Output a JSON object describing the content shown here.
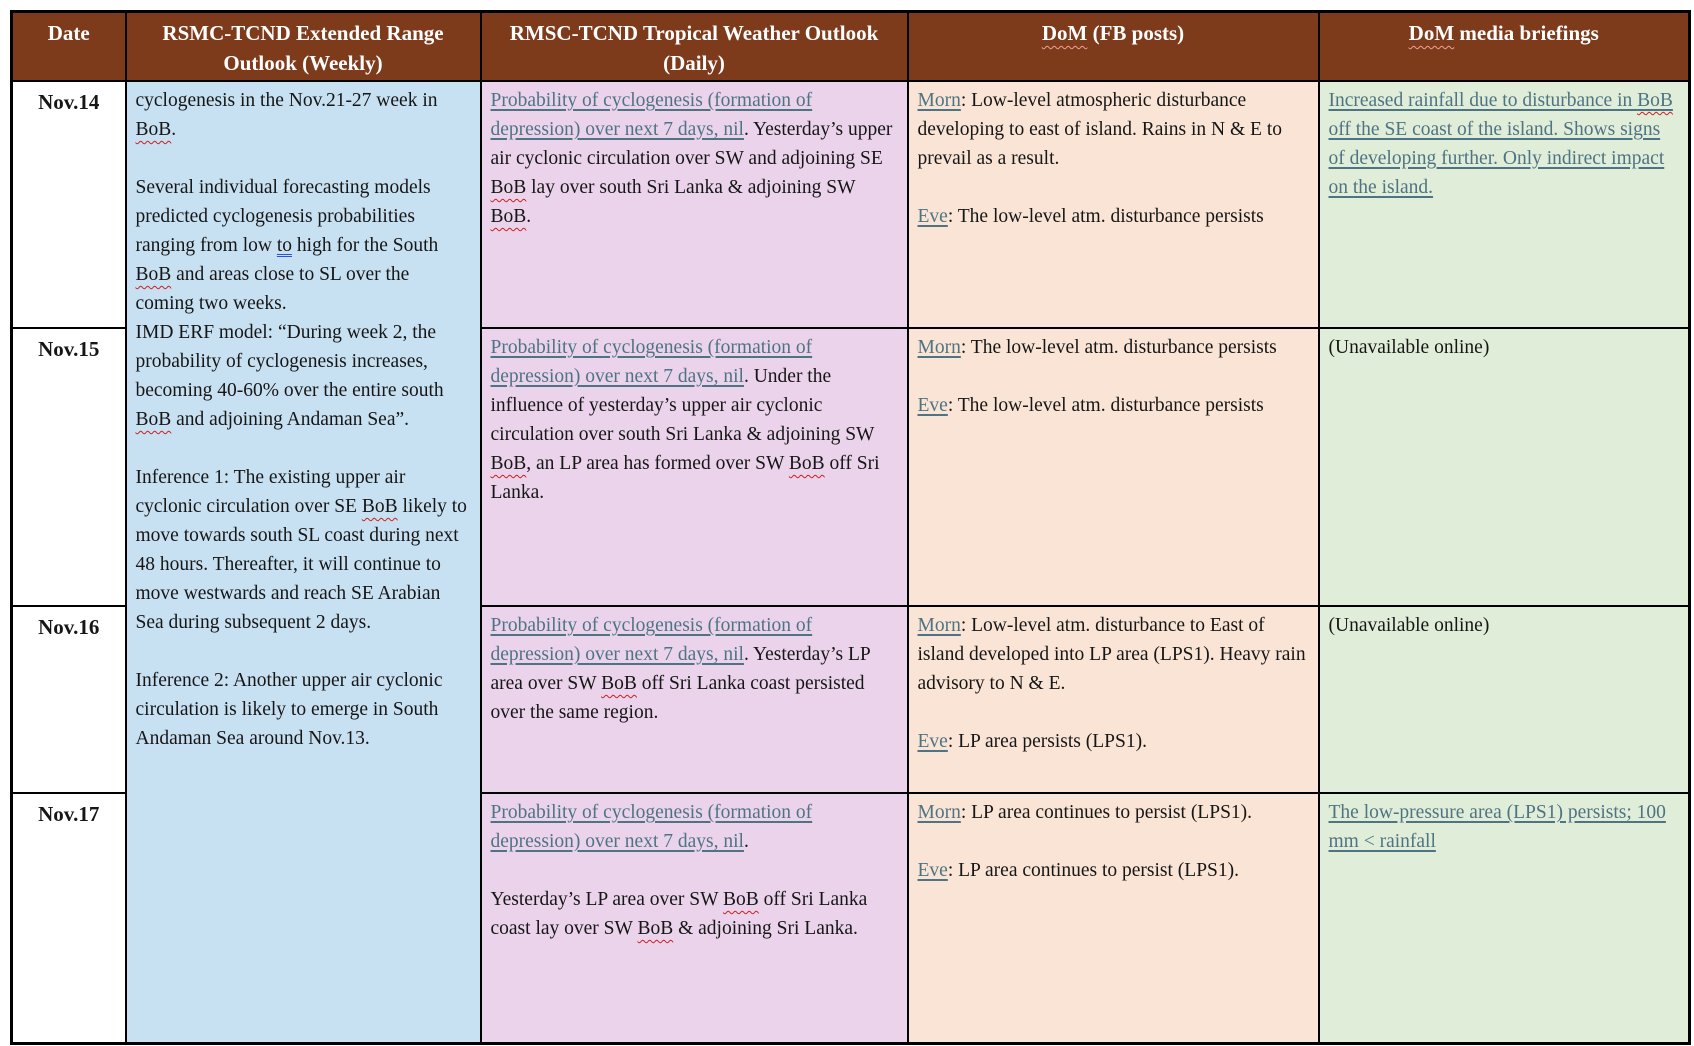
{
  "colors": {
    "header_bg": "#7E3B1C",
    "weekly_bg": "#C8E1F2",
    "daily_bg": "#EBD3EC",
    "fb_bg": "#F9E4D5",
    "media_bg": "#E0EDD8",
    "link_color": "#4E7483",
    "wavy_color": "#CC1F1F",
    "grammar_color": "#2753D9"
  },
  "table": {
    "header": [
      {
        "paragraphs": [
          [
            {
              "t": "Date"
            }
          ]
        ]
      },
      {
        "paragraphs": [
          [
            {
              "t": "RSMC-TCND Extended Range Outlook (Weekly)"
            }
          ]
        ]
      },
      {
        "paragraphs": [
          [
            {
              "t": "RMSC-TCND Tropical Weather Outlook (Daily)"
            }
          ]
        ]
      },
      {
        "paragraphs": [
          [
            {
              "t": "DoM",
              "wavy": true
            },
            {
              "t": " (FB posts)"
            }
          ]
        ]
      },
      {
        "paragraphs": [
          [
            {
              "t": "DoM",
              "wavy": true
            },
            {
              "t": " media briefings"
            }
          ]
        ]
      }
    ],
    "weekly_cell": {
      "paragraphs": [
        [
          {
            "t": "cyclogenesis in the Nov.21-27 week in "
          },
          {
            "t": "BoB",
            "wavy": true
          },
          {
            "t": "."
          }
        ],
        [],
        [
          {
            "t": "Several individual forecasting models predicted cyclogenesis probabilities ranging from low "
          },
          {
            "t": "to",
            "grammar": true
          },
          {
            "t": " high for the South "
          },
          {
            "t": "BoB",
            "wavy": true
          },
          {
            "t": " and areas close to SL over the coming two weeks."
          }
        ],
        [
          {
            "t": "IMD ERF model: “During week 2, the probability of cyclogenesis increases, becoming 40-60% over the entire south "
          },
          {
            "t": "BoB",
            "wavy": true
          },
          {
            "t": " and adjoining Andaman Sea”."
          }
        ],
        [],
        [
          {
            "t": "Inference 1: The existing upper air cyclonic circulation over SE "
          },
          {
            "t": "BoB",
            "wavy": true
          },
          {
            "t": " likely to move towards south SL coast during next 48 hours. Thereafter, it will continue to move westwards and reach SE Arabian Sea during subsequent 2 days."
          }
        ],
        [],
        [
          {
            "t": "Inference 2: Another upper air cyclonic circulation is likely to emerge in South Andaman Sea around Nov.13."
          }
        ]
      ]
    },
    "rows": [
      {
        "date": "Nov.14",
        "daily": {
          "paragraphs": [
            [
              {
                "t": "Probability of cyclogenesis (formation of depression) over next 7 days, nil",
                "link": true
              },
              {
                "t": ". Yesterday’s upper air cyclonic circulation over SW and adjoining SE "
              },
              {
                "t": "BoB",
                "wavy": true
              },
              {
                "t": " lay over south Sri Lanka & adjoining SW "
              },
              {
                "t": "BoB",
                "wavy": true
              },
              {
                "t": "."
              }
            ]
          ]
        },
        "fb": {
          "paragraphs": [
            [
              {
                "t": "Morn",
                "link": true
              },
              {
                "t": ": Low-level atmospheric disturbance developing to east of island. Rains in N & E to prevail as a result."
              }
            ],
            [],
            [
              {
                "t": "Eve",
                "link": true
              },
              {
                "t": ": The low-level atm. disturbance persists"
              }
            ]
          ]
        },
        "media": {
          "paragraphs": [
            [
              {
                "t": "Increased rainfall due to disturbance in ",
                "link": true
              },
              {
                "t": "BoB",
                "link": true,
                "wavy": true
              },
              {
                "t": " off the SE coast of the island. Shows signs of developing further. Only indirect impact on the island.",
                "link": true
              }
            ]
          ]
        }
      },
      {
        "date": "Nov.15",
        "daily": {
          "paragraphs": [
            [
              {
                "t": "Probability of cyclogenesis (formation of depression) over next 7 days, nil",
                "link": true
              },
              {
                "t": ". Under the influence of yesterday’s upper air cyclonic circulation over south Sri Lanka & adjoining SW "
              },
              {
                "t": "BoB",
                "wavy": true
              },
              {
                "t": ", an LP area has formed over SW "
              },
              {
                "t": "BoB",
                "wavy": true
              },
              {
                "t": " off Sri Lanka."
              }
            ]
          ]
        },
        "fb": {
          "paragraphs": [
            [
              {
                "t": "Morn",
                "link": true
              },
              {
                "t": ": The low-level atm. disturbance persists"
              }
            ],
            [],
            [
              {
                "t": "Eve",
                "link": true
              },
              {
                "t": ": The low-level atm. disturbance persists"
              }
            ]
          ]
        },
        "media": {
          "paragraphs": [
            [
              {
                "t": "(Unavailable online)"
              }
            ]
          ]
        }
      },
      {
        "date": "Nov.16",
        "daily": {
          "paragraphs": [
            [
              {
                "t": "Probability of cyclogenesis (formation of depression) over next 7 days, nil",
                "link": true
              },
              {
                "t": ". Yesterday’s LP area over SW "
              },
              {
                "t": "BoB",
                "wavy": true
              },
              {
                "t": " off Sri Lanka coast persisted over the same region."
              }
            ]
          ]
        },
        "fb": {
          "paragraphs": [
            [
              {
                "t": "Morn",
                "link": true
              },
              {
                "t": ": Low-level atm. disturbance to East of island developed into LP area (LPS1). Heavy rain advisory to N & E."
              }
            ],
            [],
            [
              {
                "t": "Eve",
                "link": true
              },
              {
                "t": ": LP area persists (LPS1)."
              }
            ]
          ]
        },
        "media": {
          "paragraphs": [
            [
              {
                "t": "(Unavailable online)"
              }
            ]
          ]
        }
      },
      {
        "date": "Nov.17",
        "daily": {
          "paragraphs": [
            [
              {
                "t": "Probability of cyclogenesis (formation of depression) over next 7 days, nil",
                "link": true
              },
              {
                "t": "."
              }
            ],
            [],
            [
              {
                "t": "Yesterday’s LP area over SW "
              },
              {
                "t": "BoB",
                "wavy": true
              },
              {
                "t": " off Sri Lanka coast lay over SW "
              },
              {
                "t": "BoB",
                "wavy": true
              },
              {
                "t": " & adjoining Sri Lanka."
              }
            ]
          ]
        },
        "fb": {
          "paragraphs": [
            [
              {
                "t": "Morn",
                "link": true
              },
              {
                "t": ": LP area continues to persist (LPS1)."
              }
            ],
            [],
            [
              {
                "t": "Eve",
                "link": true
              },
              {
                "t": ": LP area continues to persist (LPS1)."
              }
            ]
          ]
        },
        "media": {
          "paragraphs": [
            [
              {
                "t": "The low-pressure area (LPS1) persists; 100 mm < rainfall",
                "link": true
              }
            ]
          ]
        }
      }
    ]
  }
}
